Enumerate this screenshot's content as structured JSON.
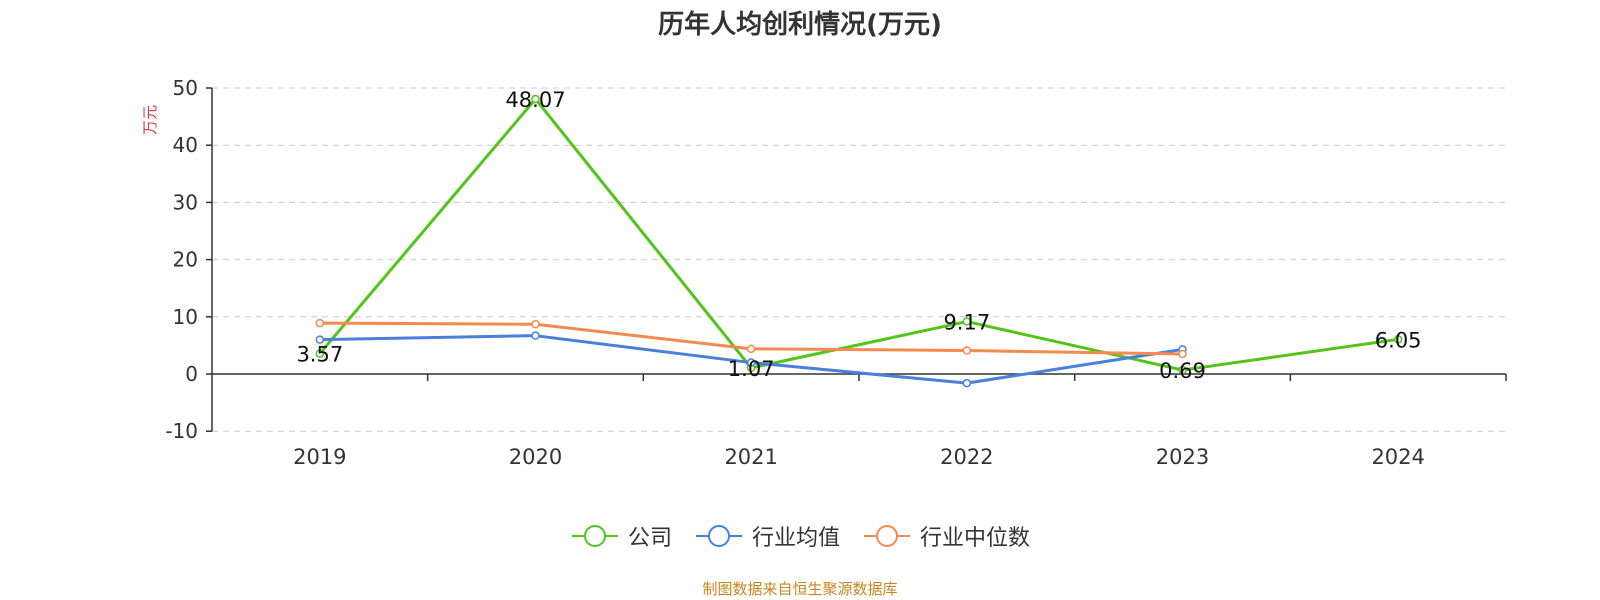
{
  "chart_data": {
    "type": "line",
    "title": "历年人均创利情况(万元)",
    "ylabel": "万元",
    "xlabel": "",
    "categories": [
      "2019",
      "2020",
      "2021",
      "2022",
      "2023",
      "2024"
    ],
    "ylim": [
      -10,
      50
    ],
    "yticks": [
      50,
      40,
      30,
      20,
      10,
      0,
      -10
    ],
    "grid": true,
    "legend_position": "bottom",
    "series": [
      {
        "name": "公司",
        "color": "#52c41a",
        "values": [
          3.57,
          48.07,
          1.07,
          9.17,
          0.69,
          6.05
        ],
        "labels": [
          "3.57",
          "48.07",
          "1.07",
          "9.17",
          "0.69",
          "6.05"
        ]
      },
      {
        "name": "行业均值",
        "color": "#4a7fdb",
        "values": [
          6.0,
          6.7,
          2.0,
          -1.6,
          4.3,
          null
        ]
      },
      {
        "name": "行业中位数",
        "color": "#f58a4e",
        "values": [
          8.9,
          8.7,
          4.4,
          4.1,
          3.5,
          null
        ]
      }
    ]
  },
  "source": "制图数据来自恒生聚源数据库"
}
